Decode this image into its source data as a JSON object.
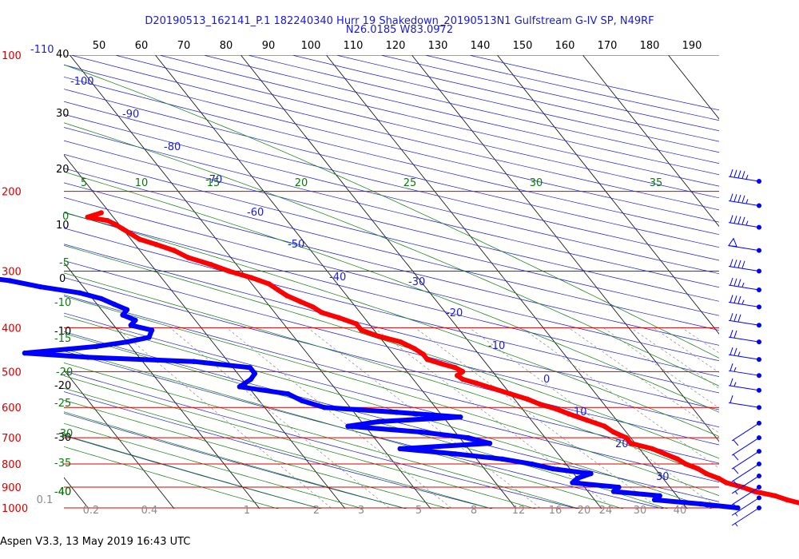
{
  "chart_data": {
    "type": "line",
    "title": "D20190513_162141_P.1 182240340 Hurr 19 Shakedown_20190513N1 Gulfstream G-IV SP, N49RF",
    "subtitle": "N26.0185 W83.0972",
    "footer": "Aspen V3.3, 13 May 2019  16:43 UTC",
    "pressure_ticks": [
      "100",
      "200",
      "300",
      "400",
      "500",
      "600",
      "700",
      "800",
      "900",
      "1000"
    ],
    "pressure_values": [
      100,
      200,
      300,
      400,
      500,
      600,
      700,
      800,
      900,
      1000
    ],
    "left_blue_label": "-110",
    "height_ticks": [
      "40",
      "30",
      "20",
      "10",
      "0",
      "-10",
      "-20",
      "-30",
      "-40"
    ],
    "top_ticks": [
      "50",
      "60",
      "70",
      "80",
      "90",
      "100",
      "110",
      "120",
      "130",
      "140",
      "150",
      "160",
      "170",
      "180",
      "190"
    ],
    "dry_adiabat_labels": [
      "-100",
      "-90",
      "-80",
      "-70",
      "-60",
      "-50",
      "-40",
      "-30",
      "-20",
      "-10",
      "0",
      "10",
      "20",
      "30"
    ],
    "moist_adiabat_labels": [
      "5",
      "10",
      "15",
      "20",
      "25",
      "30",
      "35"
    ],
    "green_side_labels": [
      "0",
      "-5",
      "-10",
      "-15",
      "-20",
      "-25",
      "-30",
      "-35",
      "-40"
    ],
    "mixing_ratio_labels": [
      "0.1",
      "0.2",
      "0.4",
      "1",
      "2",
      "3",
      "5",
      "8",
      "12",
      "16",
      "20",
      "24",
      "30",
      "40"
    ],
    "colors": {
      "isobar": "#d40000",
      "isotherm": "#000000",
      "dry_adiabat": "#1a1ae0",
      "moist_adiabat": "#0a7a0a",
      "mixing_ratio": "#8a8a8a",
      "temperature": "#ff0000",
      "dewpoint": "#0000ff",
      "title": "#1a1ad6"
    },
    "series": [
      {
        "key": "temperature",
        "p": [
          223,
          228,
          232,
          236,
          242,
          248,
          255,
          262,
          270,
          280,
          290,
          300,
          310,
          320,
          330,
          340,
          350,
          360,
          370,
          380,
          392,
          405,
          418,
          430,
          445,
          458,
          470,
          480,
          490,
          500,
          510,
          520,
          530,
          545,
          560,
          575,
          590,
          605,
          620,
          640,
          660,
          680,
          700,
          720,
          740,
          760,
          780,
          800,
          820,
          840,
          860,
          880,
          900,
          920,
          940,
          960,
          980,
          1000
        ],
        "t": [
          -41,
          -43,
          -41,
          -40.5,
          -40,
          -39.5,
          -39,
          -37.5,
          -36,
          -35,
          -33,
          -31.5,
          -29.5,
          -28,
          -27.5,
          -27,
          -26,
          -25,
          -24.5,
          -23,
          -21.5,
          -21.5,
          -20,
          -18,
          -17,
          -16.5,
          -16.5,
          -15.3,
          -14,
          -13.5,
          -14.5,
          -14.2,
          -13,
          -11.5,
          -10,
          -8.5,
          -7.5,
          -6,
          -5,
          -3.5,
          -2,
          -1.5,
          -0.5,
          -0.5,
          1.5,
          2.5,
          3.5,
          4,
          5,
          5.5,
          6.5,
          7,
          8.5,
          9.5,
          11.5,
          12.5,
          14,
          17
        ]
      },
      {
        "key": "dewpoint",
        "p": [
          223,
          228,
          235,
          245,
          255,
          265,
          275,
          285,
          300,
          305,
          315,
          325,
          335,
          345,
          355,
          365,
          375,
          385,
          395,
          405,
          420,
          430,
          440,
          455,
          465,
          475,
          490,
          505,
          520,
          540,
          560,
          580,
          600,
          615,
          630,
          645,
          660,
          680,
          700,
          720,
          740,
          760,
          780,
          800,
          820,
          840,
          860,
          880,
          900,
          920,
          940,
          960,
          980,
          1000
        ],
        "t": [
          -80,
          -79,
          -77,
          -77,
          -76,
          -74,
          -72,
          -70,
          -66,
          -63,
          -58,
          -55,
          -51,
          -49,
          -48,
          -47,
          -48,
          -47,
          -48,
          -46,
          -47,
          -50,
          -54,
          -63,
          -56,
          -44,
          -38,
          -38,
          -39,
          -41,
          -36,
          -35,
          -33,
          -25,
          -18,
          -28,
          -32,
          -24,
          -19,
          -17,
          -28,
          -22,
          -17,
          -14,
          -12,
          -8,
          -10,
          -11,
          -6,
          -7,
          -2,
          -3,
          2,
          6
        ]
      },
      {
        "key": "wind_barbs",
        "p": [
          190,
          215,
          240,
          270,
          300,
          330,
          360,
          395,
          430,
          470,
          510,
          550,
          600,
          650,
          700,
          750,
          800,
          850,
          900,
          950,
          1000
        ],
        "speed_kt": [
          45,
          45,
          45,
          50,
          40,
          35,
          35,
          30,
          20,
          25,
          15,
          15,
          10,
          10,
          10,
          10,
          10,
          5,
          10,
          5,
          5
        ]
      }
    ]
  }
}
